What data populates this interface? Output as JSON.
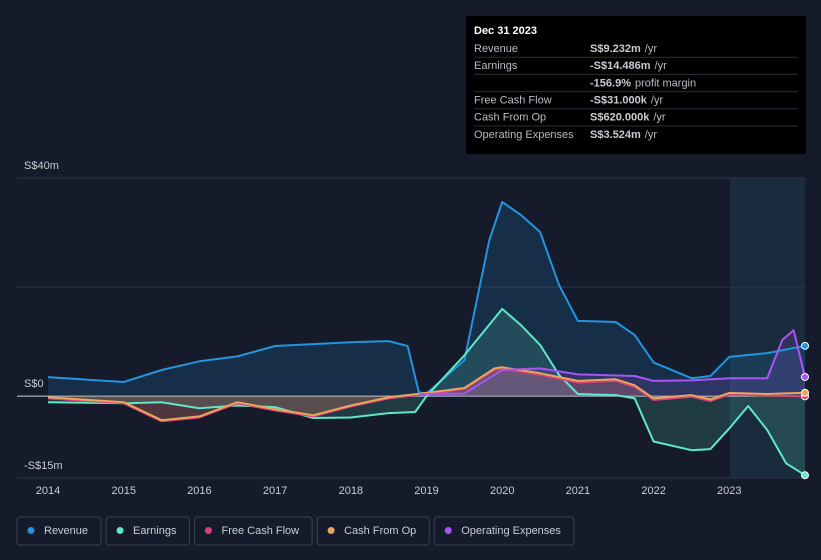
{
  "chart_data": {
    "type": "line",
    "xlim": [
      2013.59,
      2024.0
    ],
    "xticks": [
      2014,
      2015,
      2016,
      2017,
      2018,
      2019,
      2020,
      2021,
      2022,
      2023
    ],
    "ylim": [
      -15,
      40
    ],
    "yticks": [
      {
        "value": -15,
        "label": "-S$15m"
      },
      {
        "value": 0,
        "label": "S$0"
      },
      {
        "value": 20,
        "label": null
      },
      {
        "value": 40,
        "label": "S$40m"
      }
    ],
    "grid": true,
    "series": [
      {
        "name": "Revenue",
        "color": "#2394df",
        "x": [
          2014,
          2015,
          2015.5,
          2016,
          2016.5,
          2017,
          2018,
          2018.5,
          2018.75,
          2018.9,
          2019,
          2019.5,
          2019.83,
          2020,
          2020.25,
          2020.5,
          2020.75,
          2021,
          2021.5,
          2021.75,
          2022,
          2022.5,
          2022.75,
          2023,
          2023.5,
          2024
        ],
        "values": [
          3.5,
          2.6,
          4.8,
          6.4,
          7.3,
          9.2,
          9.9,
          10.1,
          9.2,
          0.7,
          0.5,
          6.6,
          28.6,
          35.6,
          33.2,
          30.1,
          20.4,
          13.8,
          13.6,
          11.2,
          6.2,
          3.3,
          3.7,
          7.2,
          7.9,
          9.232
        ]
      },
      {
        "name": "Earnings",
        "color": "#5ee8c8",
        "x": [
          2014,
          2015,
          2015.5,
          2016,
          2016.5,
          2017,
          2017.5,
          2018,
          2018.5,
          2018.85,
          2019,
          2019.5,
          2020,
          2020.25,
          2020.5,
          2020.75,
          2021,
          2021.5,
          2021.75,
          2022,
          2022.5,
          2022.75,
          2023,
          2023.25,
          2023.5,
          2023.75,
          2024
        ],
        "values": [
          -1.1,
          -1.3,
          -1.1,
          -2.2,
          -1.7,
          -2.0,
          -4.0,
          -3.9,
          -3.1,
          -2.9,
          0,
          7.5,
          16.0,
          13.0,
          9.4,
          3.9,
          0.4,
          0.2,
          -0.4,
          -8.3,
          -9.9,
          -9.7,
          -5.9,
          -1.8,
          -6.2,
          -12.3,
          -14.486
        ]
      },
      {
        "name": "Free Cash Flow",
        "color": "#d6437a",
        "x": [
          2014,
          2015,
          2015.5,
          2016,
          2016.5,
          2017,
          2017.5,
          2018,
          2018.5,
          2019,
          2019.5,
          2019.9,
          2020,
          2020.5,
          2021,
          2021.5,
          2021.75,
          2022,
          2022.5,
          2022.75,
          2023,
          2023.5,
          2024
        ],
        "values": [
          -0.4,
          -1.3,
          -4.6,
          -3.9,
          -1.3,
          -2.6,
          -3.7,
          -1.9,
          -0.4,
          0.4,
          1.3,
          4.8,
          5.0,
          3.9,
          2.5,
          2.8,
          1.7,
          -0.7,
          -0.1,
          -0.9,
          0.3,
          0.1,
          -0.031
        ]
      },
      {
        "name": "Cash From Op",
        "color": "#e9a55b",
        "x": [
          2014,
          2015,
          2015.5,
          2016,
          2016.5,
          2017,
          2017.5,
          2018,
          2018.5,
          2019,
          2019.5,
          2019.9,
          2020,
          2020.5,
          2021,
          2021.5,
          2021.75,
          2022,
          2022.5,
          2022.75,
          2023,
          2023.5,
          2024
        ],
        "values": [
          -0.2,
          -1.1,
          -4.4,
          -3.7,
          -1.1,
          -2.4,
          -3.5,
          -1.7,
          -0.2,
          0.6,
          1.5,
          5.1,
          5.3,
          4.2,
          2.8,
          3.1,
          2.0,
          -0.4,
          0.2,
          -0.6,
          0.6,
          0.4,
          0.62
        ]
      },
      {
        "name": "Operating Expenses",
        "color": "#a855f7",
        "x": [
          2018.9,
          2019.5,
          2020,
          2020.5,
          2021,
          2021.75,
          2022,
          2022.5,
          2023,
          2023.5,
          2023.7,
          2023.85,
          2024
        ],
        "values": [
          0.4,
          0.5,
          4.8,
          5.1,
          4.0,
          3.7,
          2.8,
          2.9,
          3.3,
          3.3,
          10.3,
          12.1,
          3.524
        ]
      }
    ]
  },
  "tooltip": {
    "title": "Dec 31 2023",
    "rows": [
      {
        "label": "Revenue",
        "value": "S$9.232m",
        "unit": "/yr",
        "color": "#2394df"
      },
      {
        "label": "Earnings",
        "value": "-S$14.486m",
        "unit": "/yr",
        "color": "#e8453c"
      },
      {
        "value": "-156.9%",
        "unit": "profit margin",
        "color": "#e8453c"
      },
      {
        "label": "Free Cash Flow",
        "value": "-S$31.000k",
        "unit": "/yr",
        "color": "#e8453c"
      },
      {
        "label": "Cash From Op",
        "value": "S$620.000k",
        "unit": "/yr",
        "color": "#e9a55b"
      },
      {
        "label": "Operating Expenses",
        "value": "S$3.524m",
        "unit": "/yr",
        "color": "#a855f7"
      }
    ]
  }
}
